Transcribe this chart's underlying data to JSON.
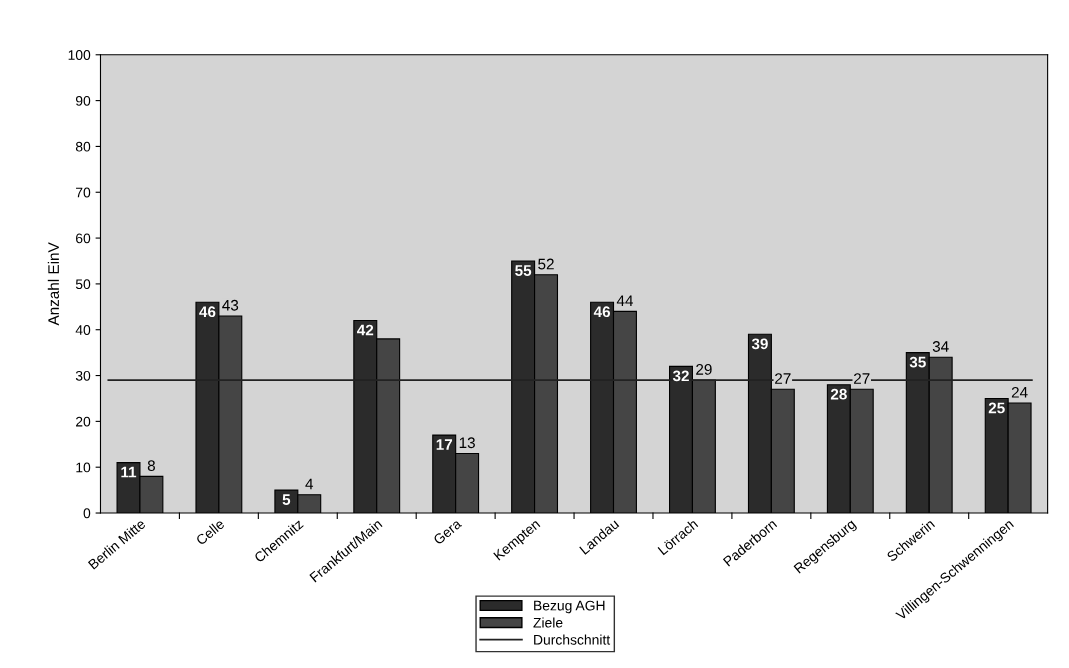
{
  "chart_data": {
    "type": "bar",
    "ylabel": "Anzahl EinV",
    "categories": [
      "Berlin Mitte",
      "Celle",
      "Chemnitz",
      "Frankfurt/Main",
      "Gera",
      "Kempten",
      "Landau",
      "Lörrach",
      "Paderborn",
      "Regensburg",
      "Schwerin",
      "Villingen-Schwenningen"
    ],
    "series": [
      {
        "name": "Bezug AGH",
        "color": "#2b2b2b",
        "values": [
          11,
          46,
          5,
          42,
          17,
          55,
          46,
          32,
          39,
          28,
          35,
          25
        ],
        "value_labels": [
          "11",
          "46",
          "5",
          "42",
          "17",
          "55",
          "46",
          "32",
          "39",
          "28",
          "35",
          "25"
        ]
      },
      {
        "name": "Ziele",
        "color": "#454545",
        "values": [
          8,
          43,
          4,
          38,
          13,
          52,
          44,
          29,
          27,
          27,
          34,
          24
        ],
        "value_labels": [
          "8",
          "43",
          "4",
          null,
          "13",
          "52",
          "44",
          "29",
          "27",
          "27",
          "34",
          "24"
        ]
      }
    ],
    "ref_lines": [
      {
        "axis": "y",
        "value": 29,
        "label": "Durchschnitt",
        "color": "#222222"
      }
    ],
    "ylim": [
      0,
      100
    ],
    "yticks": [
      0,
      10,
      20,
      30,
      40,
      50,
      60,
      70,
      80,
      90,
      100
    ],
    "grid": false,
    "legend": "bottom"
  }
}
